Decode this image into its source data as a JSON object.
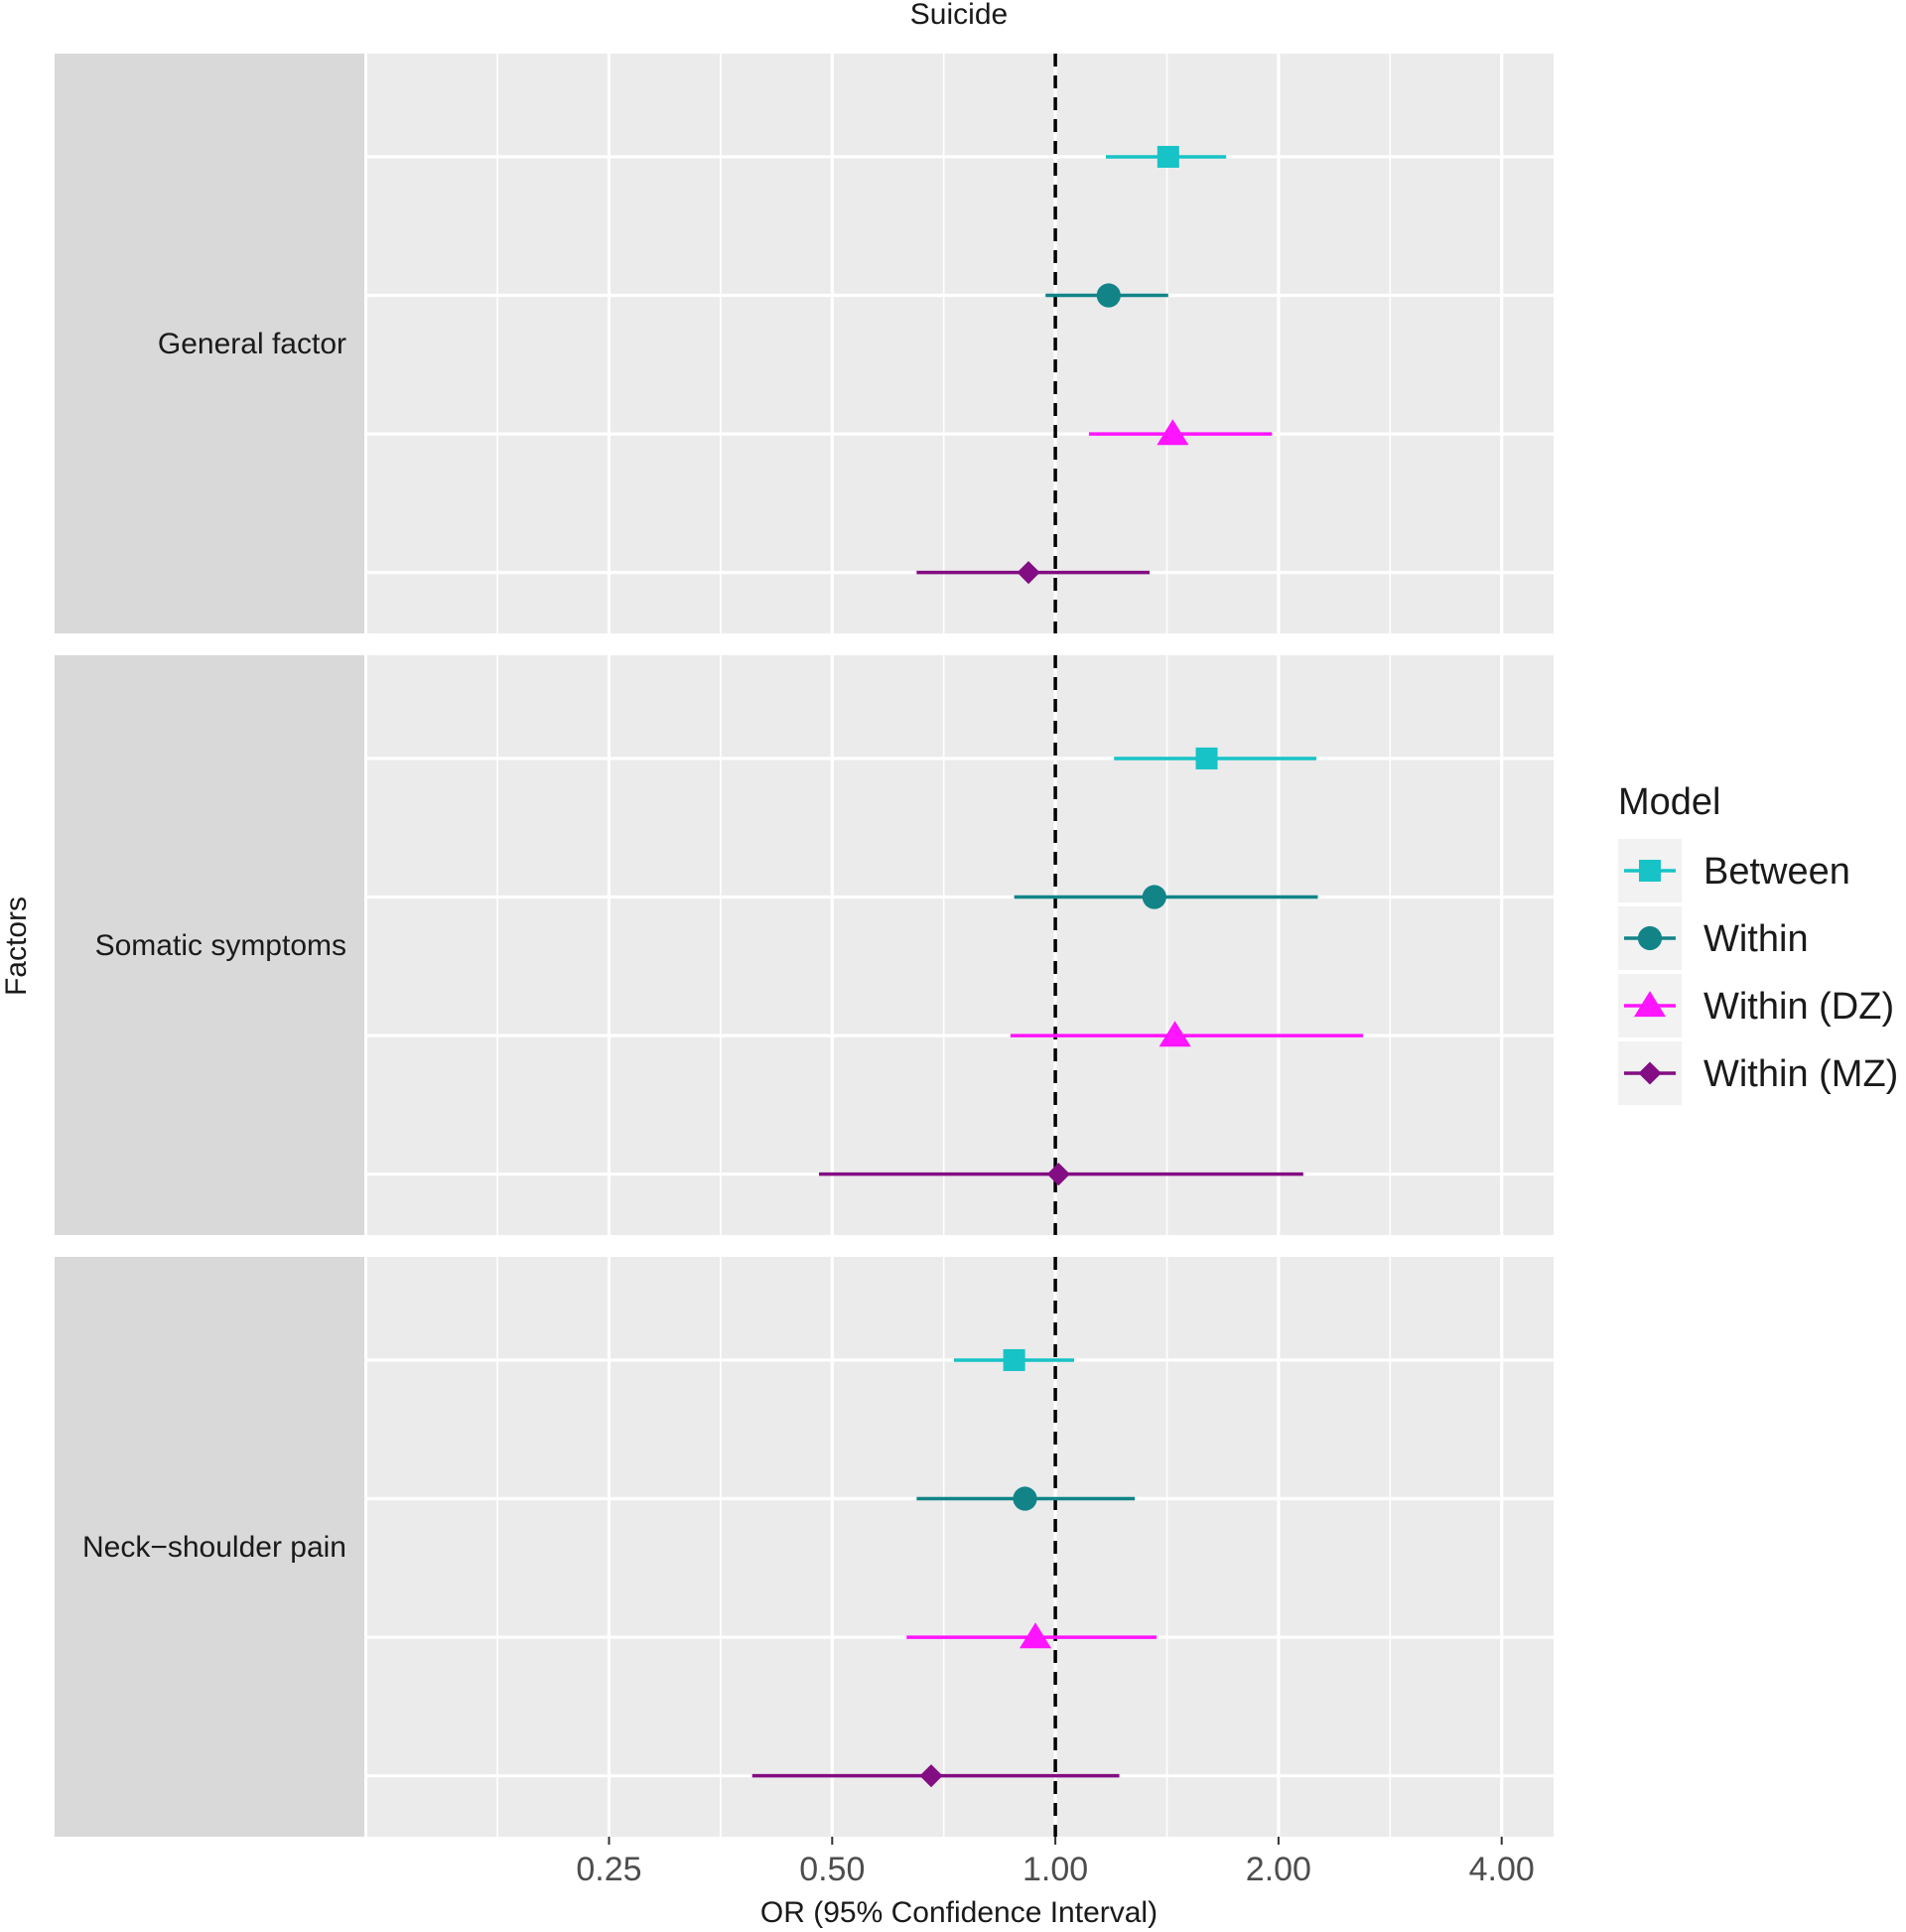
{
  "chart_data": {
    "type": "forest",
    "title": "Suicide",
    "xlabel": "OR (95% Confidence Interval)",
    "ylabel": "Factors",
    "x_scale": "log2",
    "xlim": [
      0.118,
      4.7
    ],
    "x_ticks": [
      0.25,
      0.5,
      1.0,
      2.0,
      4.0
    ],
    "x_tick_labels": [
      "0.25",
      "0.50",
      "1.00",
      "2.00",
      "4.00"
    ],
    "reference_line": 1.0,
    "grid": true,
    "legend": {
      "title": "Model",
      "position": "right",
      "entries": [
        {
          "label": "Between",
          "color": "#17c3c6",
          "shape": "square"
        },
        {
          "label": "Within",
          "color": "#128488",
          "shape": "circle"
        },
        {
          "label": "Within (DZ)",
          "color": "#ff14ff",
          "shape": "triangle"
        },
        {
          "label": "Within (MZ)",
          "color": "#830d83",
          "shape": "diamond"
        }
      ]
    },
    "panels": [
      {
        "label": "General factor",
        "estimates": [
          {
            "model": "Between",
            "or": 1.42,
            "lo": 1.17,
            "hi": 1.7
          },
          {
            "model": "Within",
            "or": 1.18,
            "lo": 0.97,
            "hi": 1.42
          },
          {
            "model": "Within (DZ)",
            "or": 1.44,
            "lo": 1.11,
            "hi": 1.96
          },
          {
            "model": "Within (MZ)",
            "or": 0.92,
            "lo": 0.65,
            "hi": 1.34
          }
        ]
      },
      {
        "label": "Somatic symptoms",
        "estimates": [
          {
            "model": "Between",
            "or": 1.6,
            "lo": 1.2,
            "hi": 2.25
          },
          {
            "model": "Within",
            "or": 1.36,
            "lo": 0.88,
            "hi": 2.26
          },
          {
            "model": "Within (DZ)",
            "or": 1.45,
            "lo": 0.87,
            "hi": 2.6
          },
          {
            "model": "Within (MZ)",
            "or": 1.01,
            "lo": 0.48,
            "hi": 2.16
          }
        ]
      },
      {
        "label": "Neck−shoulder pain",
        "estimates": [
          {
            "model": "Between",
            "or": 0.88,
            "lo": 0.73,
            "hi": 1.06
          },
          {
            "model": "Within",
            "or": 0.91,
            "lo": 0.65,
            "hi": 1.28
          },
          {
            "model": "Within (DZ)",
            "or": 0.94,
            "lo": 0.63,
            "hi": 1.37
          },
          {
            "model": "Within (MZ)",
            "or": 0.68,
            "lo": 0.39,
            "hi": 1.22
          }
        ]
      }
    ]
  }
}
